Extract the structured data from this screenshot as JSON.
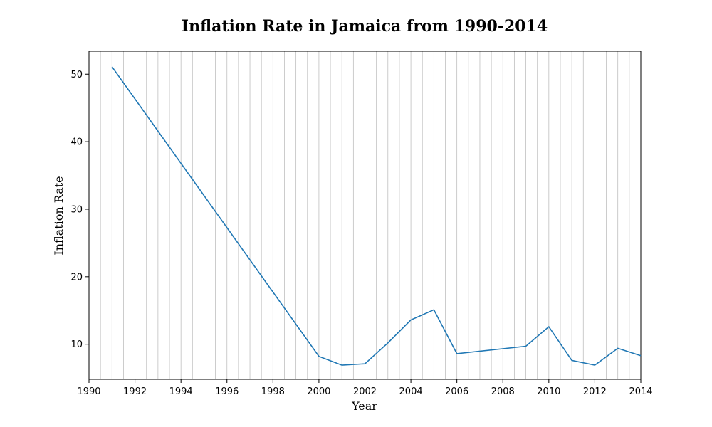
{
  "chart_data": {
    "type": "line",
    "title": "Inflation Rate in Jamaica from 1990-2014",
    "xlabel": "Year",
    "ylabel": "Inflation Rate",
    "xlim": [
      1990,
      2014
    ],
    "ylim": [
      4.8,
      53.4
    ],
    "xticks": [
      1990,
      1992,
      1994,
      1996,
      1998,
      2000,
      2002,
      2004,
      2006,
      2008,
      2010,
      2012,
      2014
    ],
    "xtick_labels": [
      "1990",
      "1992",
      "1994",
      "1996",
      "1998",
      "2000",
      "2002",
      "2004",
      "2006",
      "2008",
      "2010",
      "2012",
      "2014"
    ],
    "yticks": [
      10,
      20,
      30,
      40,
      50
    ],
    "ytick_labels": [
      "10",
      "20",
      "30",
      "40",
      "50"
    ],
    "x_grid_step": 0.5,
    "grid": "vertical",
    "color": "#1f77b4",
    "series": [
      {
        "x": [
          1991,
          2000,
          2001,
          2002,
          2003,
          2004,
          2005,
          2006,
          2009,
          2010,
          2011,
          2012,
          2013,
          2014
        ],
        "y": [
          51.1,
          8.2,
          6.9,
          7.1,
          10.2,
          13.6,
          15.1,
          8.6,
          9.7,
          12.6,
          7.6,
          6.9,
          9.4,
          8.3
        ]
      }
    ]
  }
}
